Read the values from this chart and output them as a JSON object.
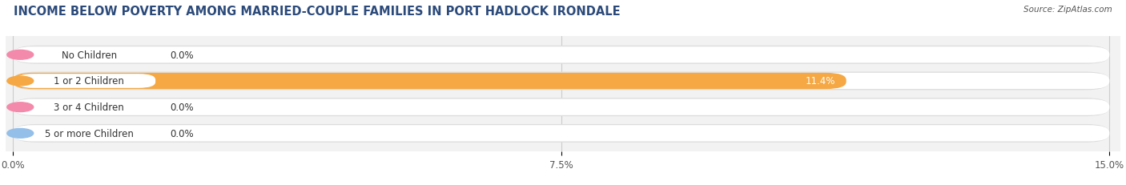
{
  "title": "INCOME BELOW POVERTY AMONG MARRIED-COUPLE FAMILIES IN PORT HADLOCK IRONDALE",
  "source": "Source: ZipAtlas.com",
  "categories": [
    "No Children",
    "1 or 2 Children",
    "3 or 4 Children",
    "5 or more Children"
  ],
  "values": [
    0.0,
    11.4,
    0.0,
    0.0
  ],
  "bar_colors": [
    "#f48aab",
    "#f5a843",
    "#f48aab",
    "#94bfe8"
  ],
  "background_color": "#f2f2f2",
  "bar_background_color": "#e8e8e8",
  "bar_inner_color": "#ffffff",
  "xlim": [
    0,
    15.0
  ],
  "xticks": [
    0.0,
    7.5,
    15.0
  ],
  "xticklabels": [
    "0.0%",
    "7.5%",
    "15.0%"
  ],
  "title_fontsize": 10.5,
  "label_fontsize": 8.5,
  "value_fontsize": 8.5,
  "bar_height": 0.62,
  "figsize": [
    14.06,
    2.32
  ],
  "dpi": 100
}
